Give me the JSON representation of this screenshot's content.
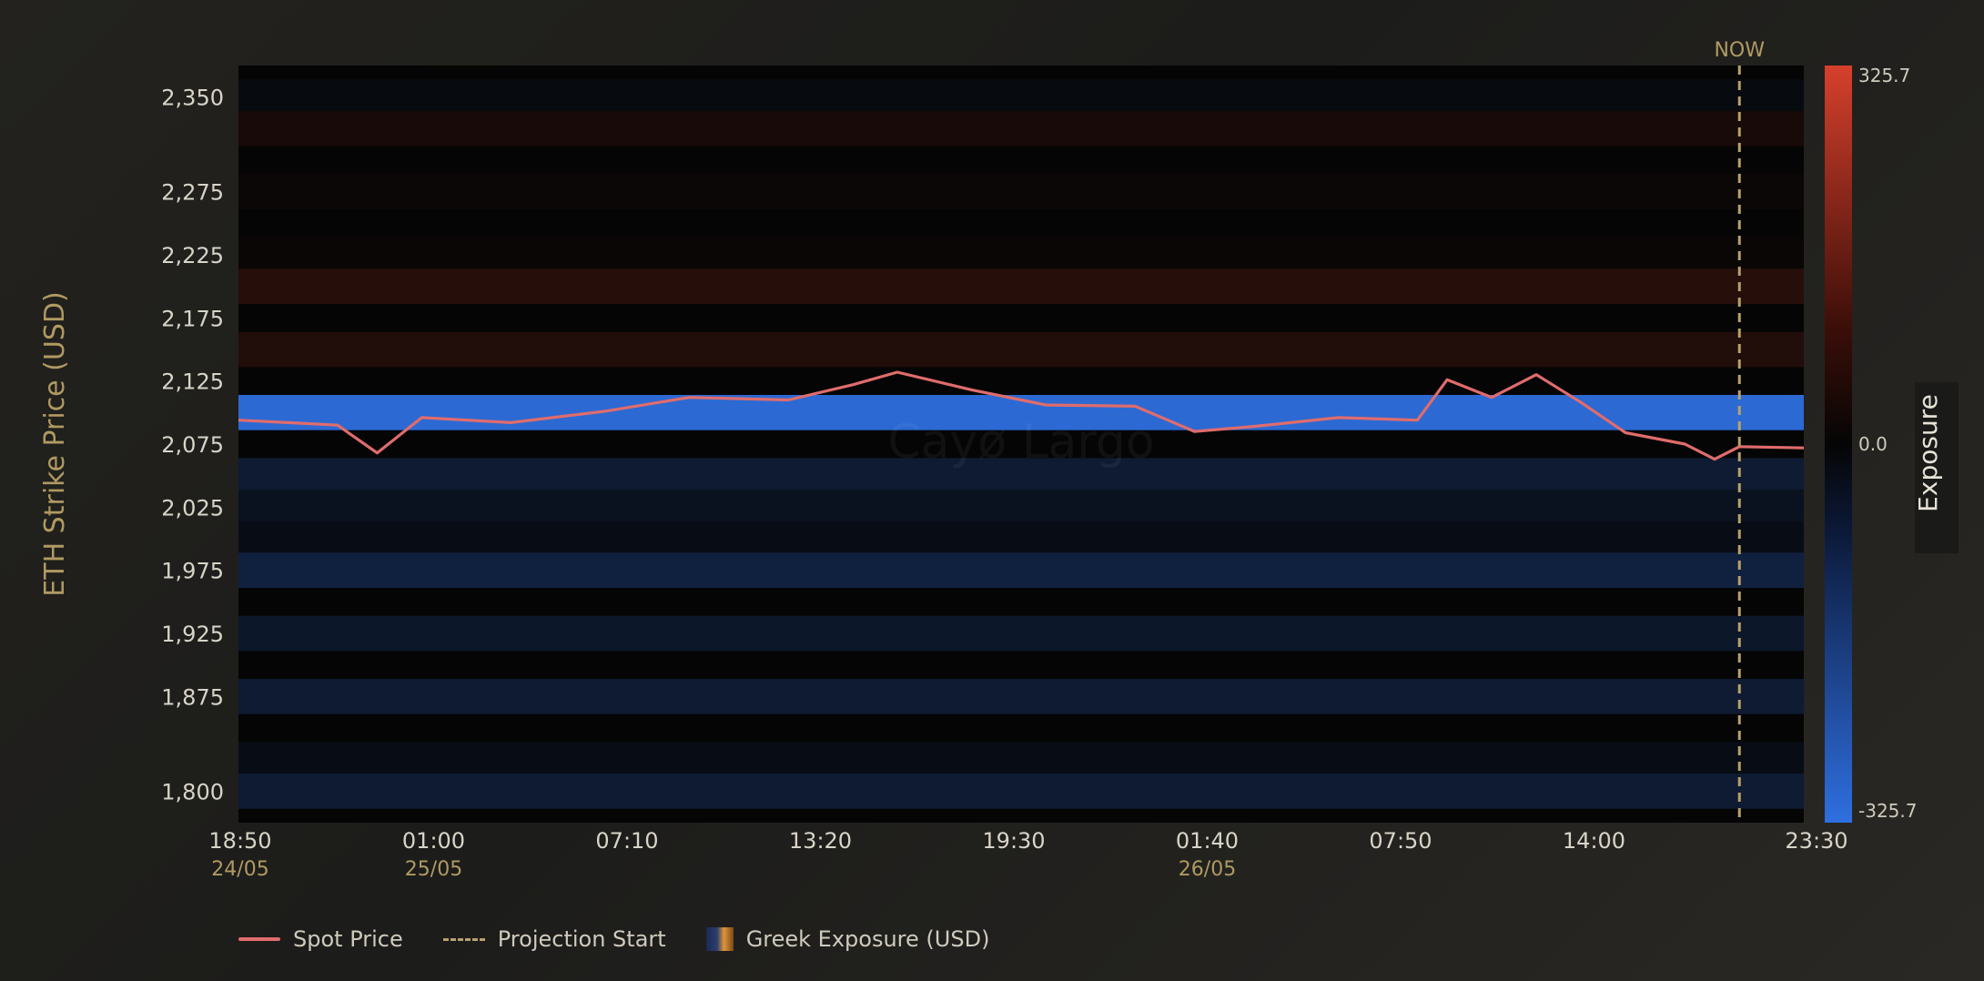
{
  "chart_data": {
    "type": "heatmap",
    "title": "",
    "ylabel": "ETH Strike Price (USD)",
    "colorbar": {
      "label": "Exposure",
      "max": 325.7,
      "mid": 0.0,
      "min": -325.7,
      "max_label": "325.7",
      "mid_label": "0.0",
      "min_label": "-325.7",
      "colors": {
        "positive": "#d6402c",
        "zero": "#050505",
        "negative": "#2f6fe0"
      }
    },
    "y_axis": {
      "range": [
        1775,
        2375
      ],
      "ticks": [
        "2,350",
        "2,275",
        "2,225",
        "2,175",
        "2,125",
        "2,075",
        "2,025",
        "1,975",
        "1,925",
        "1,875",
        "1,800"
      ]
    },
    "x_axis": {
      "range": [
        "2024-05-24 18:50",
        "2024-05-26 23:30"
      ],
      "ticks": [
        {
          "time": "18:50",
          "date": "24/05"
        },
        {
          "time": "01:00",
          "date": "25/05"
        },
        {
          "time": "07:10",
          "date": ""
        },
        {
          "time": "13:20",
          "date": ""
        },
        {
          "time": "19:30",
          "date": ""
        },
        {
          "time": "01:40",
          "date": "26/05"
        },
        {
          "time": "07:50",
          "date": ""
        },
        {
          "time": "14:00",
          "date": ""
        },
        {
          "time": "23:30",
          "date": ""
        }
      ]
    },
    "now_marker": {
      "label": "NOW",
      "time": "2024-05-26 21:20"
    },
    "watermark": "Cayø Largo",
    "strike_rows": [
      {
        "strike": 2350,
        "exposure": -5
      },
      {
        "strike": 2325,
        "exposure": 12
      },
      {
        "strike": 2275,
        "exposure": 3
      },
      {
        "strike": 2250,
        "exposure": 0
      },
      {
        "strike": 2225,
        "exposure": 2
      },
      {
        "strike": 2200,
        "exposure": 28
      },
      {
        "strike": 2175,
        "exposure": 0
      },
      {
        "strike": 2150,
        "exposure": 22
      },
      {
        "strike": 2125,
        "exposure": 0
      },
      {
        "strike": 2100,
        "exposure": -300
      },
      {
        "strike": 2075,
        "exposure": 0
      },
      {
        "strike": 2050,
        "exposure": -40
      },
      {
        "strike": 2025,
        "exposure": -20
      },
      {
        "strike": 2000,
        "exposure": -10
      },
      {
        "strike": 1975,
        "exposure": -55
      },
      {
        "strike": 1950,
        "exposure": 0
      },
      {
        "strike": 1925,
        "exposure": -30
      },
      {
        "strike": 1900,
        "exposure": 0
      },
      {
        "strike": 1875,
        "exposure": -40
      },
      {
        "strike": 1850,
        "exposure": 0
      },
      {
        "strike": 1825,
        "exposure": -10
      },
      {
        "strike": 1800,
        "exposure": -40
      }
    ],
    "spot_series": {
      "name": "Spot Price",
      "color": "#e06c6c",
      "points": [
        [
          "2024-05-24 18:50",
          2094
        ],
        [
          "2024-05-24 20:30",
          2092
        ],
        [
          "2024-05-24 22:10",
          2090
        ],
        [
          "2024-05-24 23:30",
          2068
        ],
        [
          "2024-05-25 01:00",
          2096
        ],
        [
          "2024-05-25 04:00",
          2092
        ],
        [
          "2024-05-25 07:10",
          2101
        ],
        [
          "2024-05-25 10:00",
          2112
        ],
        [
          "2024-05-25 13:20",
          2110
        ],
        [
          "2024-05-25 15:30",
          2122
        ],
        [
          "2024-05-25 17:00",
          2132
        ],
        [
          "2024-05-25 19:30",
          2118
        ],
        [
          "2024-05-25 22:00",
          2106
        ],
        [
          "2024-05-26 01:00",
          2105
        ],
        [
          "2024-05-26 03:00",
          2085
        ],
        [
          "2024-05-26 05:00",
          2089
        ],
        [
          "2024-05-26 07:50",
          2096
        ],
        [
          "2024-05-26 10:30",
          2094
        ],
        [
          "2024-05-26 11:30",
          2126
        ],
        [
          "2024-05-26 13:00",
          2112
        ],
        [
          "2024-05-26 14:30",
          2130
        ],
        [
          "2024-05-26 16:00",
          2108
        ],
        [
          "2024-05-26 17:30",
          2084
        ],
        [
          "2024-05-26 19:30",
          2075
        ],
        [
          "2024-05-26 20:30",
          2063
        ],
        [
          "2024-05-26 21:20",
          2073
        ],
        [
          "2024-05-26 23:30",
          2072
        ]
      ]
    }
  },
  "legend": {
    "spot": "Spot Price",
    "projection": "Projection Start",
    "exposure": "Greek Exposure (USD)"
  }
}
